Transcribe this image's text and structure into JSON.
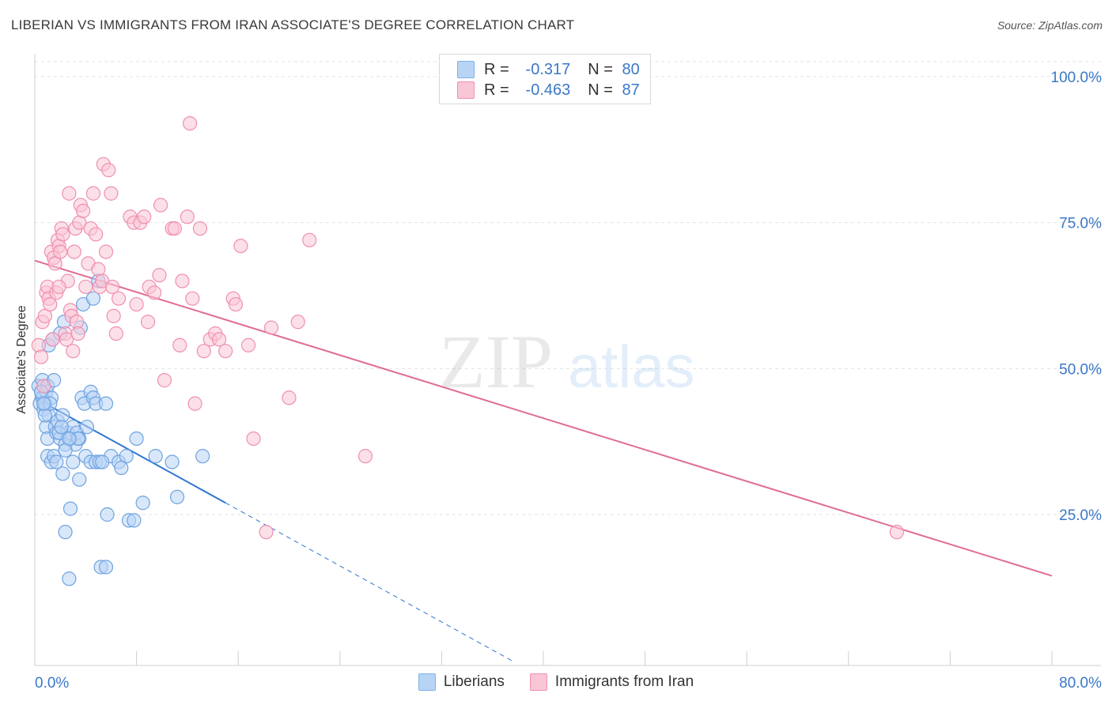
{
  "title": "LIBERIAN VS IMMIGRANTS FROM IRAN ASSOCIATE'S DEGREE CORRELATION CHART",
  "source": "Source: ZipAtlas.com",
  "watermark": {
    "zip": "ZIP",
    "atlas": "atlas"
  },
  "legend_top": [
    {
      "r_label": "R =",
      "r_value": "-0.317",
      "n_label": "N =",
      "n_value": "80",
      "color": "#7fb0e8",
      "fill": "#b8d4f5"
    },
    {
      "r_label": "R =",
      "r_value": "-0.463",
      "n_label": "N =",
      "n_value": "87",
      "color": "#f08fb0",
      "fill": "#f9c6d6"
    }
  ],
  "legend_bottom": [
    {
      "label": "Liberians",
      "fill": "#b8d4f5",
      "stroke": "#7fb0e8"
    },
    {
      "label": "Immigrants from Iran",
      "fill": "#f9c6d6",
      "stroke": "#f08fb0"
    }
  ],
  "chart_data": {
    "type": "scatter",
    "title": "LIBERIAN VS IMMIGRANTS FROM IRAN ASSOCIATE'S DEGREE CORRELATION CHART",
    "xlabel": "",
    "ylabel": "Associate's Degree",
    "xlim": [
      0,
      80
    ],
    "ylim": [
      0,
      105
    ],
    "x_tick_labels": [
      "0.0%",
      "80.0%"
    ],
    "y_ticks": [
      25,
      50,
      75,
      100
    ],
    "y_tick_labels": [
      "25.0%",
      "50.0%",
      "75.0%",
      "100.0%"
    ],
    "grid": true,
    "legend_position": "top-center",
    "series": [
      {
        "name": "Liberians",
        "color": "#6fa3e0",
        "fill": "#b8d4f5",
        "trend_color": "#2e75d0",
        "trend": {
          "x0": 0,
          "y0": 45,
          "x1": 15,
          "y1": 27,
          "dash_to_x": 37.5
        },
        "points": [
          [
            0.3,
            47
          ],
          [
            0.4,
            44
          ],
          [
            0.5,
            46
          ],
          [
            0.6,
            48
          ],
          [
            0.6,
            45
          ],
          [
            0.7,
            43
          ],
          [
            0.8,
            44
          ],
          [
            0.9,
            46
          ],
          [
            1.0,
            47
          ],
          [
            1.1,
            42
          ],
          [
            0.9,
            40
          ],
          [
            1.0,
            38
          ],
          [
            1.3,
            45
          ],
          [
            1.5,
            48
          ],
          [
            1.6,
            40
          ],
          [
            1.7,
            39
          ],
          [
            1.8,
            41
          ],
          [
            2.0,
            38
          ],
          [
            2.2,
            42
          ],
          [
            2.4,
            37
          ],
          [
            2.6,
            39
          ],
          [
            2.8,
            38
          ],
          [
            3.0,
            40
          ],
          [
            3.2,
            37
          ],
          [
            3.3,
            39
          ],
          [
            3.5,
            38
          ],
          [
            3.7,
            45
          ],
          [
            3.9,
            44
          ],
          [
            4.1,
            40
          ],
          [
            4.4,
            46
          ],
          [
            4.6,
            45
          ],
          [
            4.8,
            44
          ],
          [
            5.6,
            44
          ],
          [
            1.1,
            54
          ],
          [
            1.4,
            55
          ],
          [
            2.0,
            56
          ],
          [
            2.3,
            58
          ],
          [
            3.6,
            57
          ],
          [
            3.8,
            61
          ],
          [
            4.6,
            62
          ],
          [
            5.0,
            65
          ],
          [
            1.0,
            35
          ],
          [
            1.3,
            34
          ],
          [
            1.5,
            35
          ],
          [
            1.7,
            34
          ],
          [
            2.2,
            32
          ],
          [
            2.4,
            36
          ],
          [
            3.0,
            34
          ],
          [
            3.5,
            31
          ],
          [
            4.0,
            35
          ],
          [
            4.4,
            34
          ],
          [
            4.8,
            34
          ],
          [
            5.1,
            34
          ],
          [
            6.0,
            35
          ],
          [
            6.6,
            34
          ],
          [
            7.2,
            35
          ],
          [
            8.0,
            38
          ],
          [
            9.5,
            35
          ],
          [
            10.8,
            34
          ],
          [
            13.2,
            35
          ],
          [
            8.5,
            27
          ],
          [
            11.2,
            28
          ],
          [
            2.8,
            26
          ],
          [
            5.7,
            25
          ],
          [
            7.4,
            24
          ],
          [
            7.8,
            24
          ],
          [
            2.4,
            22
          ],
          [
            5.2,
            16
          ],
          [
            5.6,
            16
          ],
          [
            2.7,
            14
          ],
          [
            0.8,
            42
          ],
          [
            1.9,
            39
          ],
          [
            2.1,
            40
          ],
          [
            3.4,
            38
          ],
          [
            2.7,
            38
          ],
          [
            1.2,
            44
          ],
          [
            0.5,
            46
          ],
          [
            0.7,
            44
          ],
          [
            5.3,
            34
          ],
          [
            6.8,
            33
          ]
        ]
      },
      {
        "name": "Immigrants from Iran",
        "color": "#f08fb0",
        "fill": "#f9c6d6",
        "trend_color": "#e06b96",
        "trend": {
          "x0": 0,
          "y0": 68.5,
          "x1": 80,
          "y1": 14.5
        },
        "points": [
          [
            0.3,
            54
          ],
          [
            0.5,
            52
          ],
          [
            0.6,
            58
          ],
          [
            0.8,
            59
          ],
          [
            0.9,
            63
          ],
          [
            1.0,
            64
          ],
          [
            1.1,
            62
          ],
          [
            1.2,
            61
          ],
          [
            1.3,
            70
          ],
          [
            1.5,
            69
          ],
          [
            1.6,
            68
          ],
          [
            1.7,
            63
          ],
          [
            1.8,
            72
          ],
          [
            1.9,
            71
          ],
          [
            2.0,
            70
          ],
          [
            2.1,
            74
          ],
          [
            2.2,
            73
          ],
          [
            2.4,
            56
          ],
          [
            2.5,
            55
          ],
          [
            2.6,
            65
          ],
          [
            2.7,
            80
          ],
          [
            2.8,
            60
          ],
          [
            2.9,
            59
          ],
          [
            3.0,
            53
          ],
          [
            3.1,
            70
          ],
          [
            3.2,
            74
          ],
          [
            3.3,
            58
          ],
          [
            3.4,
            56
          ],
          [
            3.5,
            75
          ],
          [
            3.6,
            78
          ],
          [
            3.8,
            77
          ],
          [
            4.0,
            64
          ],
          [
            4.2,
            68
          ],
          [
            4.4,
            74
          ],
          [
            4.6,
            80
          ],
          [
            4.8,
            73
          ],
          [
            5.0,
            67
          ],
          [
            5.1,
            64
          ],
          [
            5.3,
            65
          ],
          [
            5.4,
            85
          ],
          [
            5.6,
            70
          ],
          [
            5.8,
            84
          ],
          [
            6.0,
            80
          ],
          [
            6.1,
            64
          ],
          [
            6.2,
            59
          ],
          [
            6.4,
            56
          ],
          [
            6.6,
            62
          ],
          [
            7.5,
            76
          ],
          [
            7.8,
            75
          ],
          [
            8.0,
            61
          ],
          [
            8.3,
            75
          ],
          [
            8.6,
            76
          ],
          [
            8.9,
            58
          ],
          [
            9.0,
            64
          ],
          [
            9.4,
            63
          ],
          [
            9.8,
            66
          ],
          [
            9.9,
            78
          ],
          [
            10.2,
            48
          ],
          [
            10.8,
            74
          ],
          [
            11.0,
            74
          ],
          [
            11.4,
            54
          ],
          [
            11.6,
            65
          ],
          [
            12.0,
            76
          ],
          [
            12.2,
            92
          ],
          [
            12.4,
            62
          ],
          [
            12.6,
            44
          ],
          [
            13.0,
            74
          ],
          [
            13.3,
            53
          ],
          [
            13.8,
            55
          ],
          [
            14.2,
            56
          ],
          [
            14.5,
            55
          ],
          [
            15.0,
            53
          ],
          [
            15.6,
            62
          ],
          [
            15.8,
            61
          ],
          [
            16.2,
            71
          ],
          [
            16.8,
            54
          ],
          [
            17.2,
            38
          ],
          [
            18.2,
            22
          ],
          [
            18.6,
            57
          ],
          [
            20.0,
            45
          ],
          [
            20.7,
            58
          ],
          [
            21.6,
            72
          ],
          [
            26.0,
            35
          ],
          [
            67.8,
            22
          ],
          [
            0.7,
            47
          ],
          [
            1.4,
            55
          ],
          [
            1.9,
            64
          ]
        ]
      }
    ]
  }
}
